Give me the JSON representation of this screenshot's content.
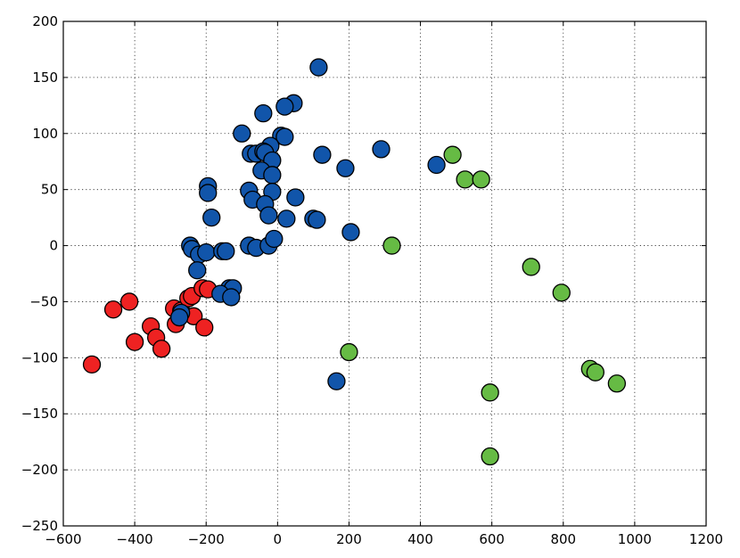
{
  "chart_data": {
    "type": "scatter",
    "title": "",
    "xlabel": "",
    "ylabel": "",
    "xlim": [
      -600,
      1200
    ],
    "ylim": [
      -250,
      200
    ],
    "xticks": [
      -600,
      -400,
      -200,
      0,
      200,
      400,
      600,
      800,
      1000,
      1200
    ],
    "yticks": [
      -250,
      -200,
      -150,
      -100,
      -50,
      0,
      50,
      100,
      150,
      200
    ],
    "grid": true,
    "legend": "none",
    "series": [
      {
        "color": "#ee2222",
        "points": [
          [
            -520,
            -106
          ],
          [
            -460,
            -57
          ],
          [
            -415,
            -50
          ],
          [
            -400,
            -86
          ],
          [
            -355,
            -72
          ],
          [
            -340,
            -82
          ],
          [
            -325,
            -92
          ],
          [
            -290,
            -56
          ],
          [
            -285,
            -70
          ],
          [
            -270,
            -58
          ],
          [
            -250,
            -47
          ],
          [
            -240,
            -45
          ],
          [
            -235,
            -63
          ],
          [
            -210,
            -38
          ],
          [
            -205,
            -73
          ],
          [
            -195,
            -39
          ]
        ]
      },
      {
        "color": "#1155aa",
        "points": [
          [
            115,
            159
          ],
          [
            45,
            127
          ],
          [
            20,
            124
          ],
          [
            -40,
            118
          ],
          [
            10,
            98
          ],
          [
            20,
            97
          ],
          [
            -100,
            100
          ],
          [
            -20,
            89
          ],
          [
            -75,
            82
          ],
          [
            -60,
            82
          ],
          [
            -40,
            84
          ],
          [
            -35,
            83
          ],
          [
            -15,
            76
          ],
          [
            -45,
            67
          ],
          [
            -15,
            63
          ],
          [
            125,
            81
          ],
          [
            190,
            69
          ],
          [
            290,
            86
          ],
          [
            445,
            72
          ],
          [
            -195,
            53
          ],
          [
            -195,
            47
          ],
          [
            -80,
            49
          ],
          [
            -15,
            48
          ],
          [
            -70,
            41
          ],
          [
            -35,
            37
          ],
          [
            50,
            43
          ],
          [
            -185,
            25
          ],
          [
            -25,
            27
          ],
          [
            25,
            24
          ],
          [
            100,
            24
          ],
          [
            110,
            23
          ],
          [
            205,
            12
          ],
          [
            -245,
            0
          ],
          [
            -240,
            -3
          ],
          [
            -80,
            0
          ],
          [
            -60,
            -2
          ],
          [
            -25,
            0
          ],
          [
            -10,
            6
          ],
          [
            -220,
            -8
          ],
          [
            -200,
            -6
          ],
          [
            -155,
            -5
          ],
          [
            -145,
            -5
          ],
          [
            -225,
            -22
          ],
          [
            -135,
            -38
          ],
          [
            -125,
            -38
          ],
          [
            -160,
            -43
          ],
          [
            -130,
            -46
          ],
          [
            -270,
            -60
          ],
          [
            -275,
            -64
          ],
          [
            165,
            -121
          ]
        ]
      },
      {
        "color": "#66bb44",
        "points": [
          [
            490,
            81
          ],
          [
            525,
            59
          ],
          [
            570,
            59
          ],
          [
            320,
            0
          ],
          [
            710,
            -19
          ],
          [
            795,
            -42
          ],
          [
            200,
            -95
          ],
          [
            595,
            -131
          ],
          [
            875,
            -110
          ],
          [
            890,
            -113
          ],
          [
            950,
            -123
          ],
          [
            595,
            -188
          ]
        ]
      }
    ]
  }
}
